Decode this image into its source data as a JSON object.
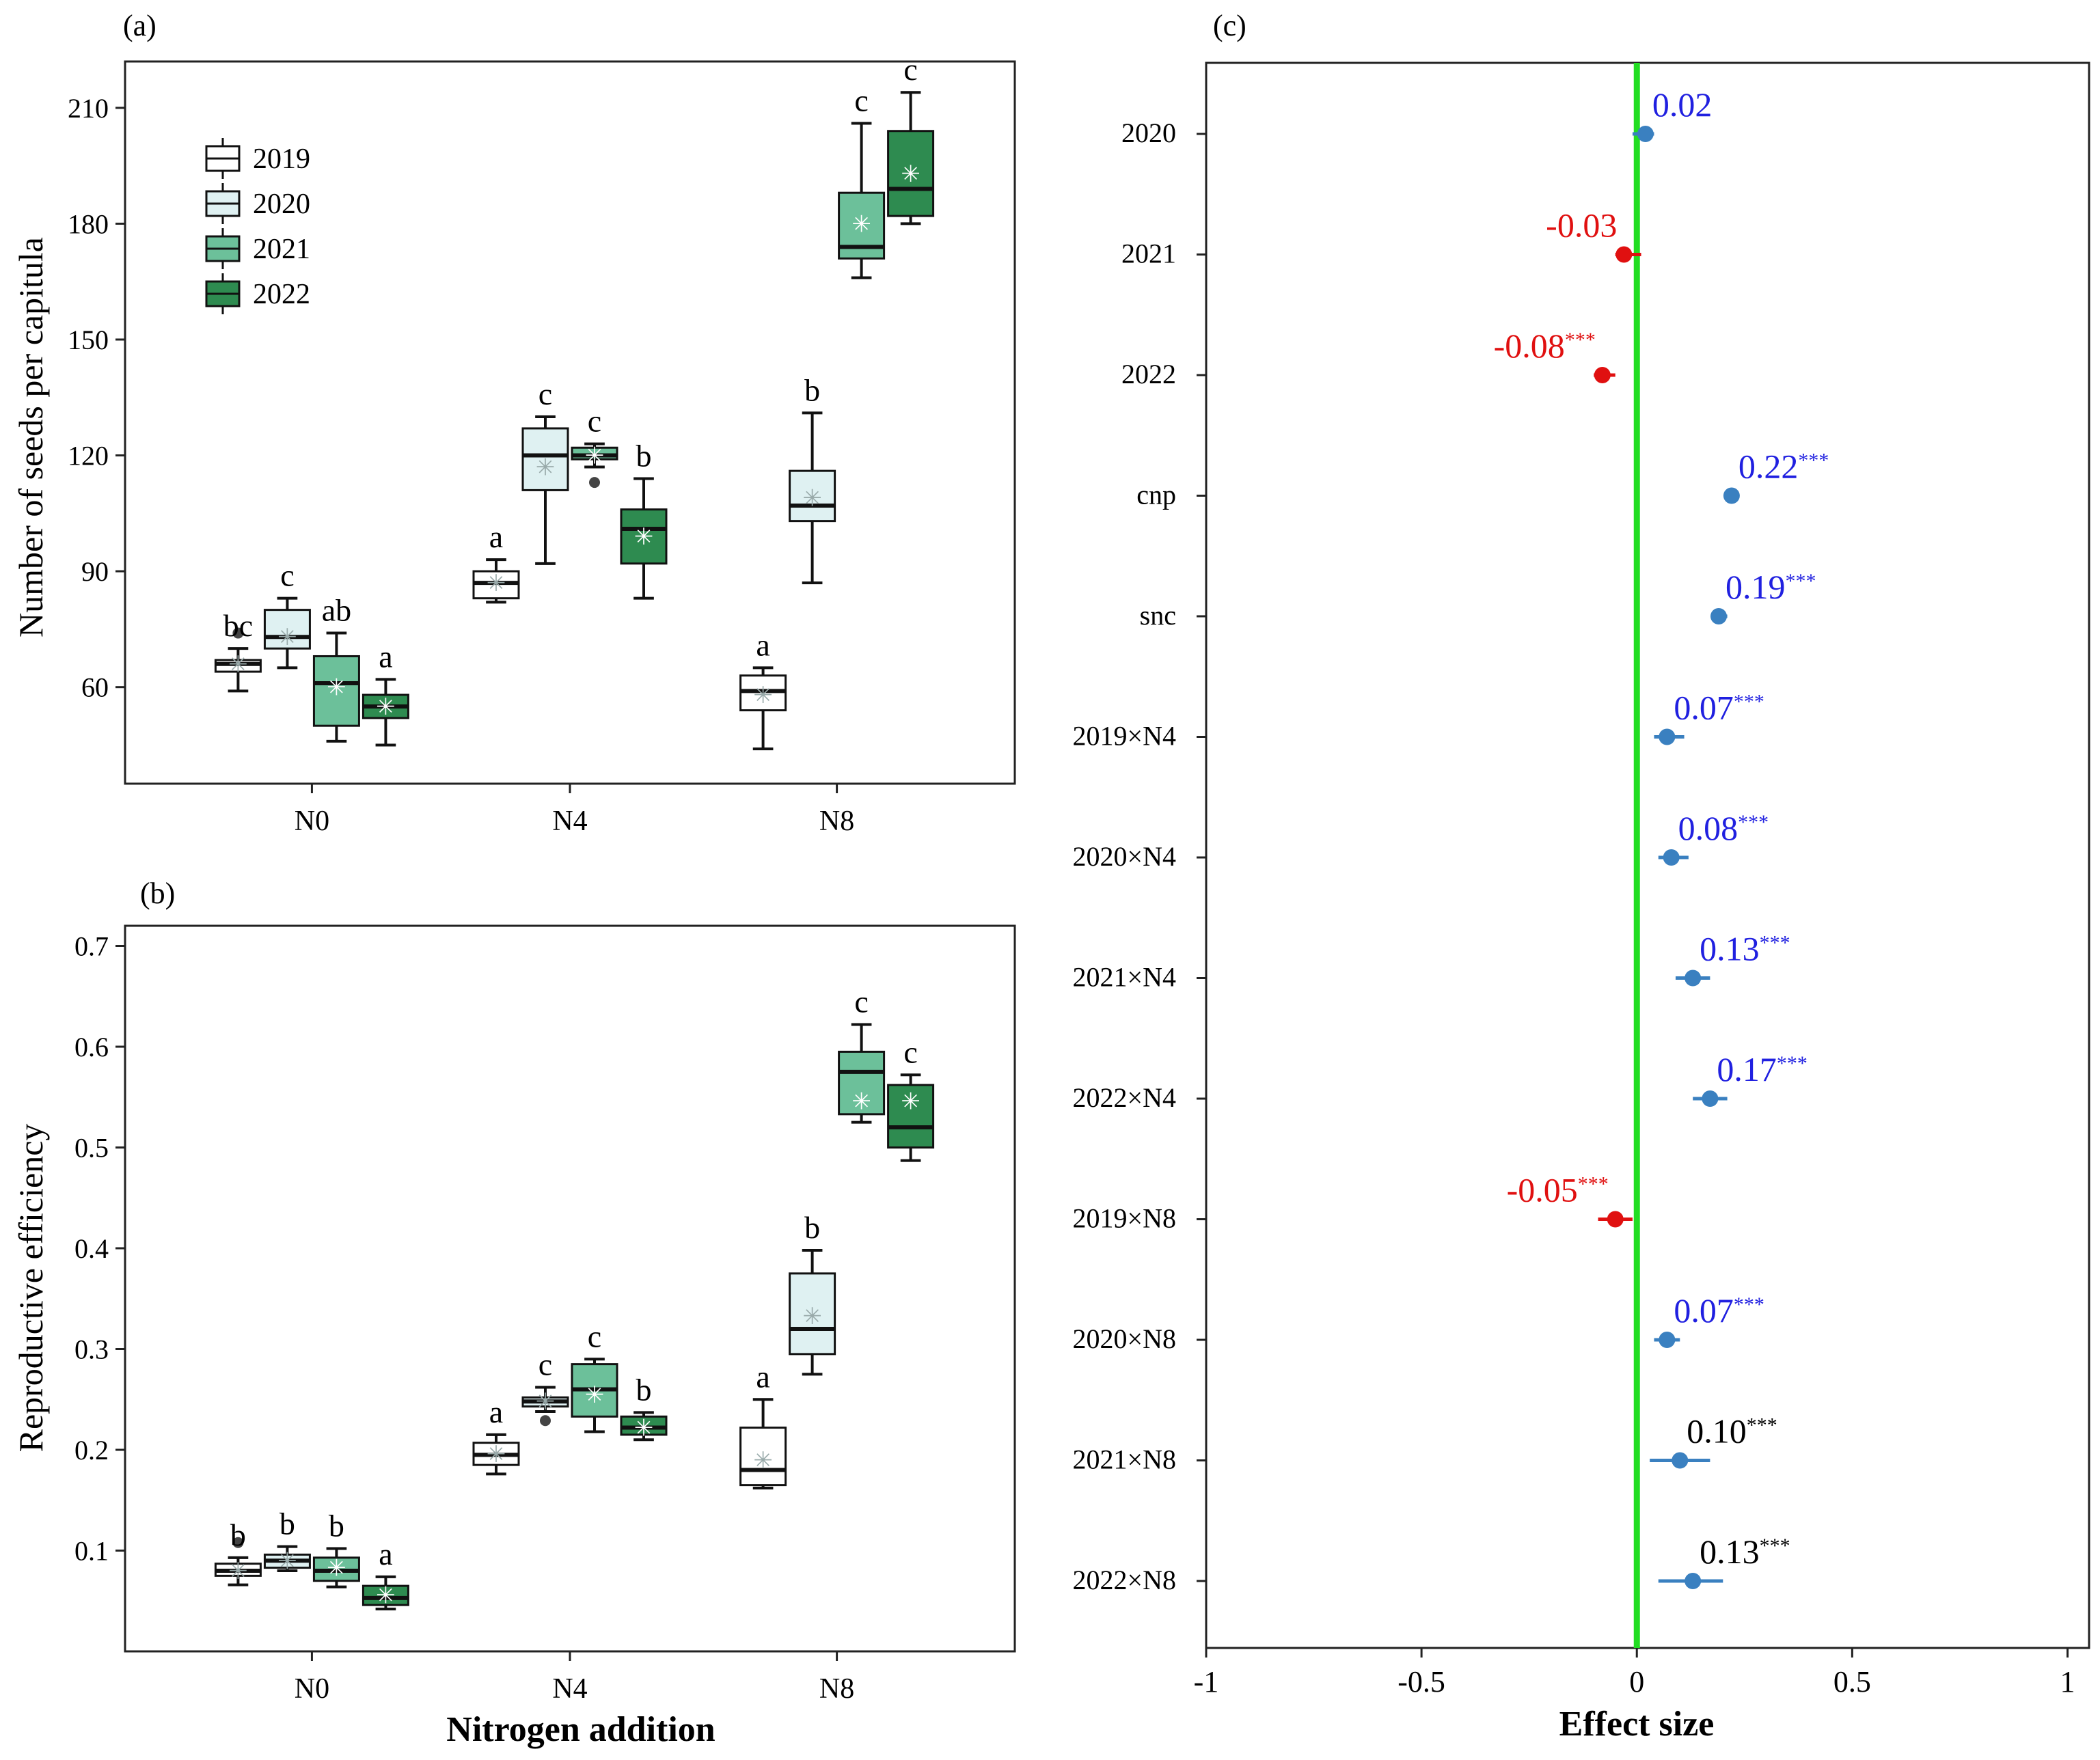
{
  "figure": {
    "panel_a_label": "(a)",
    "panel_b_label": "(b)",
    "panel_c_label": "(c)",
    "shared_xlabel": "Nitrogen addition"
  },
  "colors": {
    "2019": "#ffffff",
    "2020": "#dff1f2",
    "2021": "#6cc09a",
    "2022": "#2e8b50",
    "positive": "#2020e0",
    "negative": "#e01010",
    "neutral": "#000000",
    "point_blue": "#3a80c0",
    "point_red": "#e01010",
    "zero_line": "#22dd22"
  },
  "chart_data": [
    {
      "panel": "a",
      "type": "box",
      "categories": [
        "N0",
        "N4",
        "N8"
      ],
      "years": [
        "2019",
        "2020",
        "2021",
        "2022"
      ],
      "ylabel": "Number of seeds per capitula",
      "xlabel": "",
      "yticks": [
        60,
        90,
        120,
        150,
        180,
        210
      ],
      "ylim": [
        35,
        222
      ],
      "legend": {
        "position": "top-left",
        "labels": [
          "2019",
          "2020",
          "2021",
          "2022"
        ]
      },
      "boxes": [
        {
          "group": "N0",
          "year": "2019",
          "min": 59,
          "q1": 64,
          "median": 66,
          "q3": 67,
          "max": 70,
          "mean": 66,
          "outliers": [
            74
          ],
          "letter": "bc"
        },
        {
          "group": "N0",
          "year": "2020",
          "min": 65,
          "q1": 70,
          "median": 73,
          "q3": 80,
          "max": 83,
          "mean": 73,
          "outliers": [],
          "letter": "c"
        },
        {
          "group": "N0",
          "year": "2021",
          "min": 46,
          "q1": 50,
          "median": 61,
          "q3": 68,
          "max": 74,
          "mean": 60,
          "outliers": [],
          "letter": "ab"
        },
        {
          "group": "N0",
          "year": "2022",
          "min": 45,
          "q1": 52,
          "median": 55,
          "q3": 58,
          "max": 62,
          "mean": 55,
          "outliers": [],
          "letter": "a"
        },
        {
          "group": "N4",
          "year": "2019",
          "min": 82,
          "q1": 83,
          "median": 87,
          "q3": 90,
          "max": 93,
          "mean": 87,
          "outliers": [],
          "letter": "a"
        },
        {
          "group": "N4",
          "year": "2020",
          "min": 92,
          "q1": 111,
          "median": 120,
          "q3": 127,
          "max": 130,
          "mean": 117,
          "outliers": [],
          "letter": "c"
        },
        {
          "group": "N4",
          "year": "2021",
          "min": 117,
          "q1": 119,
          "median": 120,
          "q3": 122,
          "max": 123,
          "mean": 120,
          "outliers": [
            113
          ],
          "letter": "c"
        },
        {
          "group": "N4",
          "year": "2022",
          "min": 83,
          "q1": 92,
          "median": 101,
          "q3": 106,
          "max": 114,
          "mean": 99,
          "outliers": [],
          "letter": "b"
        },
        {
          "group": "N8",
          "year": "2019",
          "min": 44,
          "q1": 54,
          "median": 59,
          "q3": 63,
          "max": 65,
          "mean": 58,
          "outliers": [],
          "letter": "a"
        },
        {
          "group": "N8",
          "year": "2020",
          "min": 87,
          "q1": 103,
          "median": 107,
          "q3": 116,
          "max": 131,
          "mean": 109,
          "outliers": [],
          "letter": "b"
        },
        {
          "group": "N8",
          "year": "2021",
          "min": 166,
          "q1": 171,
          "median": 174,
          "q3": 188,
          "max": 206,
          "mean": 180,
          "outliers": [],
          "letter": "c"
        },
        {
          "group": "N8",
          "year": "2022",
          "min": 180,
          "q1": 182,
          "median": 189,
          "q3": 204,
          "max": 214,
          "mean": 193,
          "outliers": [],
          "letter": "c"
        }
      ]
    },
    {
      "panel": "b",
      "type": "box",
      "categories": [
        "N0",
        "N4",
        "N8"
      ],
      "years": [
        "2019",
        "2020",
        "2021",
        "2022"
      ],
      "ylabel": "Reproductive efficiency",
      "xlabel": "Nitrogen addition",
      "yticks": [
        0.1,
        0.2,
        0.3,
        0.4,
        0.5,
        0.6,
        0.7
      ],
      "ylim": [
        0.0,
        0.72
      ],
      "boxes": [
        {
          "group": "N0",
          "year": "2019",
          "min": 0.066,
          "q1": 0.075,
          "median": 0.08,
          "q3": 0.087,
          "max": 0.093,
          "mean": 0.08,
          "outliers": [
            0.108
          ],
          "letter": "b"
        },
        {
          "group": "N0",
          "year": "2020",
          "min": 0.08,
          "q1": 0.083,
          "median": 0.09,
          "q3": 0.096,
          "max": 0.104,
          "mean": 0.09,
          "outliers": [],
          "letter": "b"
        },
        {
          "group": "N0",
          "year": "2021",
          "min": 0.064,
          "q1": 0.07,
          "median": 0.08,
          "q3": 0.093,
          "max": 0.102,
          "mean": 0.083,
          "outliers": [],
          "letter": "b"
        },
        {
          "group": "N0",
          "year": "2022",
          "min": 0.042,
          "q1": 0.046,
          "median": 0.053,
          "q3": 0.065,
          "max": 0.074,
          "mean": 0.056,
          "outliers": [],
          "letter": "a"
        },
        {
          "group": "N4",
          "year": "2019",
          "min": 0.176,
          "q1": 0.185,
          "median": 0.195,
          "q3": 0.207,
          "max": 0.215,
          "mean": 0.196,
          "outliers": [],
          "letter": "a"
        },
        {
          "group": "N4",
          "year": "2020",
          "min": 0.238,
          "q1": 0.243,
          "median": 0.248,
          "q3": 0.252,
          "max": 0.262,
          "mean": 0.248,
          "outliers": [
            0.229
          ],
          "letter": "c"
        },
        {
          "group": "N4",
          "year": "2021",
          "min": 0.218,
          "q1": 0.233,
          "median": 0.26,
          "q3": 0.285,
          "max": 0.29,
          "mean": 0.255,
          "outliers": [],
          "letter": "c"
        },
        {
          "group": "N4",
          "year": "2022",
          "min": 0.21,
          "q1": 0.215,
          "median": 0.222,
          "q3": 0.233,
          "max": 0.237,
          "mean": 0.222,
          "outliers": [],
          "letter": "b"
        },
        {
          "group": "N8",
          "year": "2019",
          "min": 0.162,
          "q1": 0.165,
          "median": 0.18,
          "q3": 0.222,
          "max": 0.25,
          "mean": 0.19,
          "outliers": [],
          "letter": "a"
        },
        {
          "group": "N8",
          "year": "2020",
          "min": 0.275,
          "q1": 0.295,
          "median": 0.32,
          "q3": 0.375,
          "max": 0.398,
          "mean": 0.333,
          "outliers": [],
          "letter": "b"
        },
        {
          "group": "N8",
          "year": "2021",
          "min": 0.525,
          "q1": 0.533,
          "median": 0.575,
          "q3": 0.595,
          "max": 0.622,
          "mean": 0.546,
          "outliers": [],
          "letter": "c"
        },
        {
          "group": "N8",
          "year": "2022",
          "min": 0.487,
          "q1": 0.5,
          "median": 0.52,
          "q3": 0.562,
          "max": 0.572,
          "mean": 0.546,
          "outliers": [],
          "letter": "c"
        }
      ]
    },
    {
      "panel": "c",
      "type": "forest",
      "xlabel": "Effect size",
      "xlim": [
        -1.0,
        1.05
      ],
      "xticks": [
        -1,
        -0.5,
        0,
        0.5,
        1
      ],
      "xtick_labels": [
        "-1",
        "-0.5",
        "0",
        "0.5",
        "1"
      ],
      "zero_line": 0,
      "terms": [
        {
          "label": "2020",
          "value": 0.02,
          "ci_low": -0.01,
          "ci_high": 0.04,
          "display": "0.02",
          "sig": "",
          "direction": "positive"
        },
        {
          "label": "2021",
          "value": -0.03,
          "ci_low": -0.05,
          "ci_high": 0.01,
          "display": "-0.03",
          "sig": "",
          "direction": "negative"
        },
        {
          "label": "2022",
          "value": -0.08,
          "ci_low": -0.1,
          "ci_high": -0.05,
          "display": "-0.08",
          "sig": "***",
          "direction": "negative"
        },
        {
          "label": "cnp",
          "value": 0.22,
          "ci_low": 0.21,
          "ci_high": 0.23,
          "display": "0.22",
          "sig": "***",
          "direction": "positive"
        },
        {
          "label": "snc",
          "value": 0.19,
          "ci_low": 0.18,
          "ci_high": 0.21,
          "display": "0.19",
          "sig": "***",
          "direction": "positive"
        },
        {
          "label": "2019×N4",
          "value": 0.07,
          "ci_low": 0.04,
          "ci_high": 0.11,
          "display": "0.07",
          "sig": "***",
          "direction": "positive"
        },
        {
          "label": "2020×N4",
          "value": 0.08,
          "ci_low": 0.05,
          "ci_high": 0.12,
          "display": "0.08",
          "sig": "***",
          "direction": "positive"
        },
        {
          "label": "2021×N4",
          "value": 0.13,
          "ci_low": 0.09,
          "ci_high": 0.17,
          "display": "0.13",
          "sig": "***",
          "direction": "positive"
        },
        {
          "label": "2022×N4",
          "value": 0.17,
          "ci_low": 0.13,
          "ci_high": 0.21,
          "display": "0.17",
          "sig": "***",
          "direction": "positive"
        },
        {
          "label": "2019×N8",
          "value": -0.05,
          "ci_low": -0.09,
          "ci_high": -0.01,
          "display": "-0.05",
          "sig": "***",
          "direction": "negative"
        },
        {
          "label": "2020×N8",
          "value": 0.07,
          "ci_low": 0.04,
          "ci_high": 0.1,
          "display": "0.07",
          "sig": "***",
          "direction": "positive"
        },
        {
          "label": "2021×N8",
          "value": 0.1,
          "ci_low": 0.03,
          "ci_high": 0.17,
          "display": "0.10",
          "sig": "***",
          "direction": "neutral"
        },
        {
          "label": "2022×N8",
          "value": 0.13,
          "ci_low": 0.05,
          "ci_high": 0.2,
          "display": "0.13",
          "sig": "***",
          "direction": "neutral"
        }
      ]
    }
  ]
}
